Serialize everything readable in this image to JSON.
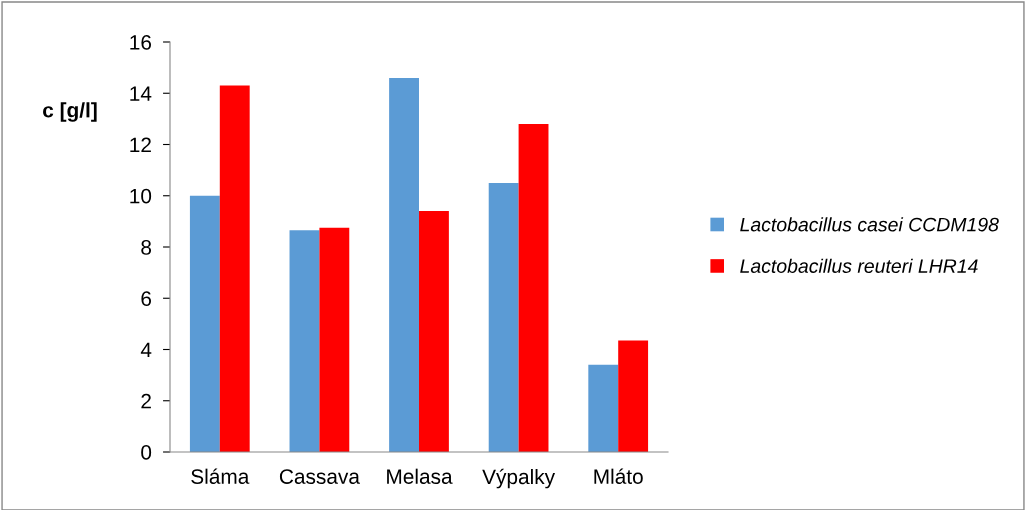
{
  "chart_data": {
    "type": "bar",
    "ylabel": "c [g/l]",
    "categories": [
      "Sláma",
      "Cassava",
      "Melasa",
      "Výpalky",
      "Mláto"
    ],
    "series": [
      {
        "name": "Lactobacillus casei CCDM198",
        "color": "#5b9bd5",
        "values": [
          10.0,
          8.65,
          14.6,
          10.5,
          3.4
        ]
      },
      {
        "name": "Lactobacillus reuteri LHR14",
        "color": "#ff0000",
        "values": [
          14.3,
          8.75,
          9.4,
          12.8,
          4.35
        ]
      }
    ],
    "ylim": [
      0,
      16
    ],
    "yticks": [
      0,
      2,
      4,
      6,
      8,
      10,
      12,
      14,
      16
    ],
    "grid": false,
    "legend": "right"
  }
}
